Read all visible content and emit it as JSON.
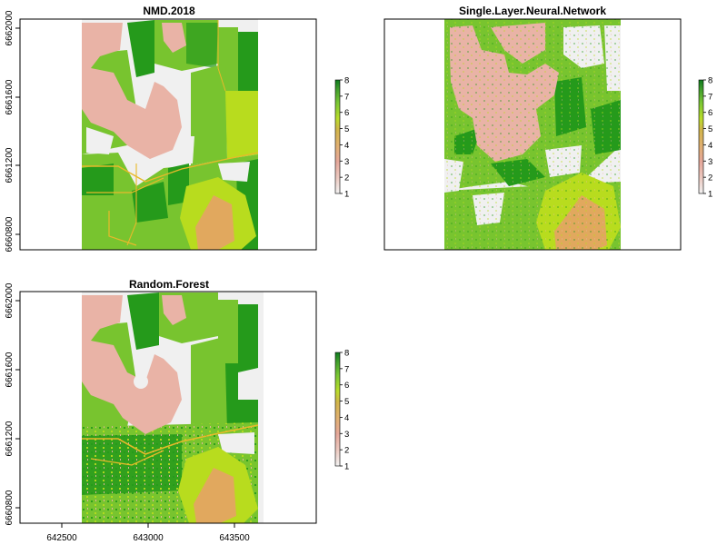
{
  "legend": {
    "breaks": [
      "1",
      "2",
      "3",
      "4",
      "5",
      "6",
      "7",
      "8"
    ],
    "ramp": [
      "#f2f2f2",
      "#ecc9c0",
      "#e5a79a",
      "#e0b071",
      "#d1b44a",
      "#b9dc2b",
      "#79c634",
      "#3f9d2c",
      "#0e7b1e"
    ]
  },
  "palette": {
    "background": "#f0f0f0",
    "pink": "#e9b3a6",
    "yellow_green": "#b8dc1e",
    "mid_green": "#78c42f",
    "dark_green": "#259a1b",
    "orange": "#e1a85e",
    "line_yellow": "#e8b92a"
  },
  "panels": [
    {
      "title": "NMD.2018",
      "y_ticks": [
        "6660800",
        "6661200",
        "6661600",
        "6662000"
      ],
      "x_ticks": []
    },
    {
      "title": "Single.Layer.Neural.Network",
      "y_ticks": [],
      "x_ticks": []
    },
    {
      "title": "Random.Forest",
      "y_ticks": [
        "6660800",
        "6661200",
        "6661600",
        "6662000"
      ],
      "x_ticks": [
        "642500",
        "643000",
        "643500"
      ]
    }
  ],
  "chart_data": {
    "type": "heatmap",
    "value_range": [
      1,
      8
    ],
    "legend_ticks": [
      1,
      2,
      3,
      4,
      5,
      6,
      7,
      8
    ],
    "x_range": [
      642500,
      643500
    ],
    "y_range": [
      6660800,
      6662000
    ],
    "maps": [
      "NMD.2018",
      "Single.Layer.Neural.Network",
      "Random.Forest"
    ]
  }
}
